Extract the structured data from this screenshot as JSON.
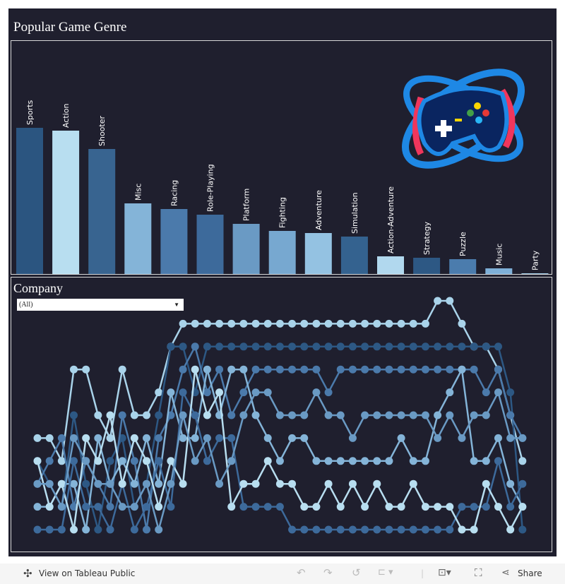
{
  "genre": {
    "title": "Popular Game Genre"
  },
  "company": {
    "title": "Company",
    "filter": {
      "selected": "(All)"
    }
  },
  "toolbar": {
    "view_label": "View on Tableau Public",
    "share_label": "Share",
    "icons": [
      "tableau-logo-icon",
      "undo-icon",
      "redo-icon",
      "revert-icon",
      "refresh-icon",
      "download-icon",
      "fullscreen-icon",
      "share-icon"
    ]
  },
  "chart_data": [
    {
      "type": "bar",
      "title": "Popular Game Genre",
      "categories": [
        "Sports",
        "Action",
        "Shooter",
        "Misc",
        "Racing",
        "Role-Playing",
        "Platform",
        "Fighting",
        "Adventure",
        "Simulation",
        "Action-Adventure",
        "Strategy",
        "Puzzle",
        "Music",
        "Party"
      ],
      "values": [
        207,
        203,
        177,
        100,
        92,
        84,
        71,
        61,
        58,
        53,
        25,
        23,
        21,
        8,
        1
      ],
      "colors": [
        "#2b5580",
        "#b8def0",
        "#386490",
        "#84b4d8",
        "#4b7aab",
        "#3d6a9b",
        "#6a9ac4",
        "#77a8d0",
        "#94c2e2",
        "#34628f",
        "#b1d8ee",
        "#2d5884",
        "#4b7cad",
        "#7fb0d8",
        "#9cc8e4"
      ]
    },
    {
      "type": "line",
      "title": "Company",
      "y_scale": "rank (1 = top)",
      "ylim": [
        1,
        11
      ],
      "series": [
        {
          "color": "#a9d3ea",
          "values": [
            7,
            7,
            8,
            4,
            4,
            6,
            7,
            4,
            6,
            6,
            5,
            3,
            2,
            2,
            2,
            2,
            2,
            2,
            2,
            2,
            2,
            2,
            2,
            2,
            2,
            2,
            2,
            2,
            2,
            2,
            2,
            2,
            2,
            1,
            1,
            2,
            3,
            3,
            4,
            6,
            8
          ]
        },
        {
          "color": "#2d5884",
          "values": [
            8,
            9,
            10,
            6,
            9,
            11,
            8,
            7,
            10,
            9,
            6,
            3,
            3,
            5,
            3,
            3,
            3,
            3,
            3,
            3,
            3,
            3,
            3,
            3,
            3,
            3,
            3,
            3,
            3,
            3,
            3,
            3,
            3,
            3,
            3,
            3,
            3,
            3,
            3,
            5,
            11
          ]
        },
        {
          "color": "#4b7aab",
          "values": [
            9,
            8,
            7,
            10,
            8,
            9,
            10,
            6,
            8,
            11,
            7,
            6,
            4,
            3,
            5,
            4,
            6,
            5,
            4,
            4,
            4,
            4,
            4,
            4,
            5,
            4,
            4,
            4,
            4,
            4,
            4,
            4,
            4,
            4,
            4,
            4,
            4,
            5,
            4,
            6,
            7
          ]
        },
        {
          "color": "#84b4d8",
          "values": [
            10,
            10,
            9,
            9,
            11,
            7,
            9,
            8,
            9,
            7,
            9,
            5,
            7,
            7,
            4,
            6,
            4,
            4,
            6,
            7,
            8,
            7,
            7,
            8,
            8,
            8,
            8,
            8,
            8,
            8,
            7,
            8,
            8,
            6,
            5,
            4,
            8,
            8,
            7,
            9,
            10
          ]
        },
        {
          "color": "#3d6a9b",
          "values": [
            11,
            11,
            11,
            8,
            10,
            10,
            11,
            9,
            11,
            10,
            8,
            10,
            5,
            6,
            8,
            7,
            7,
            10,
            10,
            10,
            10,
            11,
            11,
            11,
            11,
            11,
            11,
            11,
            11,
            11,
            11,
            11,
            11,
            11,
            11,
            10,
            10,
            10,
            8,
            10,
            9
          ]
        },
        {
          "color": "#b8def0",
          "values": [
            8,
            10,
            9,
            11,
            7,
            8,
            6,
            9,
            7,
            8,
            10,
            8,
            9,
            4,
            6,
            5,
            10,
            9,
            9,
            8,
            9,
            9,
            10,
            10,
            9,
            10,
            9,
            10,
            9,
            10,
            10,
            9,
            10,
            10,
            10,
            11,
            11,
            9,
            10,
            11,
            10
          ]
        },
        {
          "color": "#6a9ac4",
          "values": [
            9,
            9,
            10,
            7,
            8,
            9,
            9,
            10,
            10,
            9,
            11,
            9,
            6,
            8,
            7,
            9,
            8,
            6,
            5,
            5,
            6,
            6,
            6,
            5,
            6,
            6,
            7,
            6,
            6,
            6,
            6,
            6,
            6,
            7,
            6,
            7,
            6,
            6,
            5,
            7,
            7
          ]
        }
      ]
    }
  ]
}
